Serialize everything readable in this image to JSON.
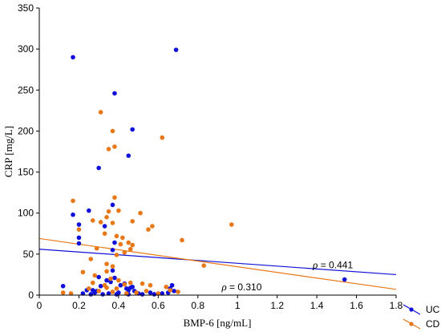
{
  "chart_data": {
    "type": "scatter",
    "title": "",
    "xlabel": "BMP-6 [ng/mL]",
    "ylabel": "CRP [mg/L]",
    "xlim": [
      0,
      1.8
    ],
    "ylim": [
      0,
      350
    ],
    "xticks": [
      "0",
      "0.2",
      "0.4",
      "0.6",
      "0.8",
      "1",
      "1.2",
      "1.4",
      "1.6",
      "1.8"
    ],
    "yticks": [
      "0",
      "50",
      "100",
      "150",
      "200",
      "250",
      "300",
      "350"
    ],
    "legend_position": "bottom-right",
    "series": [
      {
        "name": "UC",
        "color": "#1010d8",
        "points": [
          [
            0.17,
            290
          ],
          [
            0.69,
            299
          ],
          [
            0.38,
            246
          ],
          [
            0.47,
            202
          ],
          [
            0.45,
            170
          ],
          [
            0.3,
            155
          ],
          [
            0.25,
            103
          ],
          [
            0.17,
            98
          ],
          [
            0.2,
            86
          ],
          [
            0.2,
            70
          ],
          [
            0.2,
            63
          ],
          [
            0.33,
            84
          ],
          [
            0.38,
            64
          ],
          [
            0.37,
            55
          ],
          [
            0.37,
            110
          ],
          [
            0.37,
            30
          ],
          [
            0.38,
            21
          ],
          [
            0.36,
            16
          ],
          [
            0.12,
            11
          ],
          [
            0.24,
            6
          ],
          [
            0.27,
            6
          ],
          [
            0.29,
            5
          ],
          [
            0.31,
            11
          ],
          [
            0.34,
            18
          ],
          [
            0.41,
            12
          ],
          [
            0.44,
            8
          ],
          [
            0.45,
            6
          ],
          [
            0.46,
            9
          ],
          [
            0.47,
            10
          ],
          [
            0.48,
            5
          ],
          [
            0.3,
            22
          ],
          [
            0.43,
            14
          ],
          [
            0.28,
            3
          ],
          [
            0.35,
            2
          ],
          [
            0.4,
            3
          ],
          [
            0.5,
            2
          ],
          [
            0.56,
            3
          ],
          [
            0.62,
            2
          ],
          [
            0.65,
            3
          ],
          [
            0.66,
            8
          ],
          [
            0.67,
            12
          ],
          [
            0.68,
            5
          ],
          [
            0.22,
            2
          ],
          [
            0.26,
            1
          ],
          [
            0.32,
            1
          ],
          [
            0.39,
            1
          ],
          [
            0.45,
            1
          ],
          [
            0.52,
            1
          ],
          [
            0.58,
            1
          ],
          [
            1.54,
            19
          ]
        ]
      },
      {
        "name": "CD",
        "color": "#e87817",
        "points": [
          [
            0.31,
            223
          ],
          [
            0.37,
            200
          ],
          [
            0.35,
            178
          ],
          [
            0.38,
            181
          ],
          [
            0.62,
            192
          ],
          [
            0.97,
            86
          ],
          [
            0.17,
            115
          ],
          [
            0.38,
            119
          ],
          [
            0.4,
            103
          ],
          [
            0.35,
            102
          ],
          [
            0.51,
            100
          ],
          [
            0.47,
            90
          ],
          [
            0.27,
            91
          ],
          [
            0.34,
            95
          ],
          [
            0.31,
            89
          ],
          [
            0.37,
            88
          ],
          [
            0.55,
            80
          ],
          [
            0.57,
            84
          ],
          [
            0.2,
            80
          ],
          [
            0.33,
            75
          ],
          [
            0.39,
            72
          ],
          [
            0.42,
            70
          ],
          [
            0.72,
            67
          ],
          [
            0.45,
            64
          ],
          [
            0.47,
            61
          ],
          [
            0.46,
            56
          ],
          [
            0.41,
            62
          ],
          [
            0.43,
            52
          ],
          [
            0.39,
            49
          ],
          [
            0.29,
            57
          ],
          [
            0.26,
            44
          ],
          [
            0.34,
            38
          ],
          [
            0.37,
            35
          ],
          [
            0.34,
            29
          ],
          [
            0.22,
            28
          ],
          [
            0.28,
            24
          ],
          [
            0.36,
            20
          ],
          [
            0.4,
            18
          ],
          [
            0.43,
            13
          ],
          [
            0.46,
            15
          ],
          [
            0.52,
            14
          ],
          [
            0.56,
            12
          ],
          [
            0.64,
            10
          ],
          [
            0.66,
            6
          ],
          [
            0.7,
            4
          ],
          [
            0.83,
            36
          ],
          [
            0.12,
            3
          ],
          [
            0.16,
            2
          ],
          [
            0.25,
            8
          ],
          [
            0.3,
            5
          ],
          [
            0.34,
            9
          ],
          [
            0.37,
            4
          ],
          [
            0.44,
            2
          ],
          [
            0.49,
            3
          ],
          [
            0.54,
            5
          ],
          [
            0.6,
            2
          ],
          [
            0.33,
            12
          ],
          [
            0.39,
            8
          ],
          [
            0.27,
            15
          ]
        ]
      }
    ],
    "trendlines": [
      {
        "series": "UC",
        "color": "#1010d8",
        "x": [
          0,
          1.8
        ],
        "y": [
          56,
          25
        ]
      },
      {
        "series": "CD",
        "color": "#e87817",
        "x": [
          0,
          1.8
        ],
        "y": [
          69,
          7
        ]
      }
    ],
    "annotations": [
      {
        "rho_symbol": "ρ",
        "text": " = 0.441",
        "x": 1.38,
        "y": 30
      },
      {
        "rho_symbol": "ρ",
        "text": " = 0.310",
        "x": 0.92,
        "y": 3
      }
    ]
  }
}
